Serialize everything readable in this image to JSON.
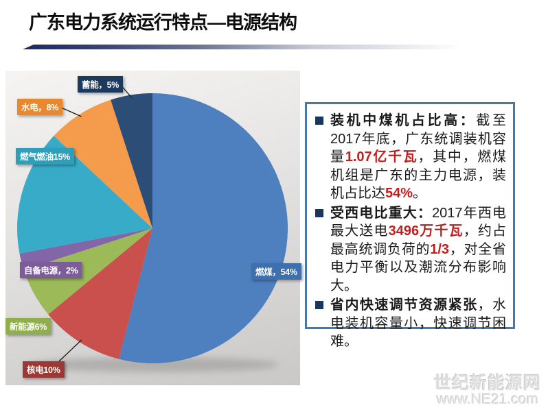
{
  "header": {
    "title": "广东电力系统运行特点—电源结构"
  },
  "chart_data": {
    "type": "pie",
    "title": "",
    "categories": [
      "燃煤",
      "核电",
      "新能源",
      "自备电源",
      "燃气燃油",
      "水电",
      "蓄能"
    ],
    "values": [
      54,
      10,
      6,
      2,
      15,
      8,
      5
    ],
    "unit": "%",
    "labels": [
      "燃煤，54%",
      "核电10%",
      "新能源6%",
      "自备电源，2%",
      "燃气燃油15%",
      "水电，8%",
      "蓄能，5%"
    ],
    "slice_colors": [
      "#4E7FBE",
      "#C9504C",
      "#9CBB58",
      "#8266A8",
      "#38ABC8",
      "#F59B4C",
      "#2B4D76"
    ],
    "label_colors": [
      "#3E70AD",
      "#9C3936",
      "#8FAE4C",
      "#7C5C99",
      "#2E9FBA",
      "#E9892F",
      "#1B3A5E"
    ],
    "start_angle_deg": 0,
    "direction": "clockwise",
    "legend_position": "none"
  },
  "notes_box": {
    "accent_red": "#C21E1E",
    "border_color": "#4878A8",
    "bullet_color": "#17375E",
    "items": [
      {
        "segments": [
          {
            "text": "装机中煤机占比高：",
            "bold": true
          },
          {
            "text": "截至2017年底，广东统调装机容量"
          },
          {
            "text": "1.07亿千瓦",
            "bold": true,
            "red": true
          },
          {
            "text": "，其中，燃煤机组是广东的主力电源，装机占比达"
          },
          {
            "text": "54%",
            "bold": true,
            "red": true
          },
          {
            "text": "。"
          }
        ]
      },
      {
        "segments": [
          {
            "text": "受西电比重大：",
            "bold": true
          },
          {
            "text": "2017年西电最大送电"
          },
          {
            "text": "3496万千瓦",
            "bold": true,
            "red": true
          },
          {
            "text": "，约占最高统调负荷的"
          },
          {
            "text": "1/3",
            "bold": true,
            "red": true
          },
          {
            "text": "，对全省电力平衡以及潮流分布影响大。"
          }
        ]
      },
      {
        "segments": [
          {
            "text": "省内快速调节资源紧张",
            "bold": true
          },
          {
            "text": "，水电装机容量小，快速调节困难。"
          }
        ]
      }
    ]
  },
  "watermark": {
    "line1": "世纪新能源网",
    "line2": "www.NE21.com"
  }
}
